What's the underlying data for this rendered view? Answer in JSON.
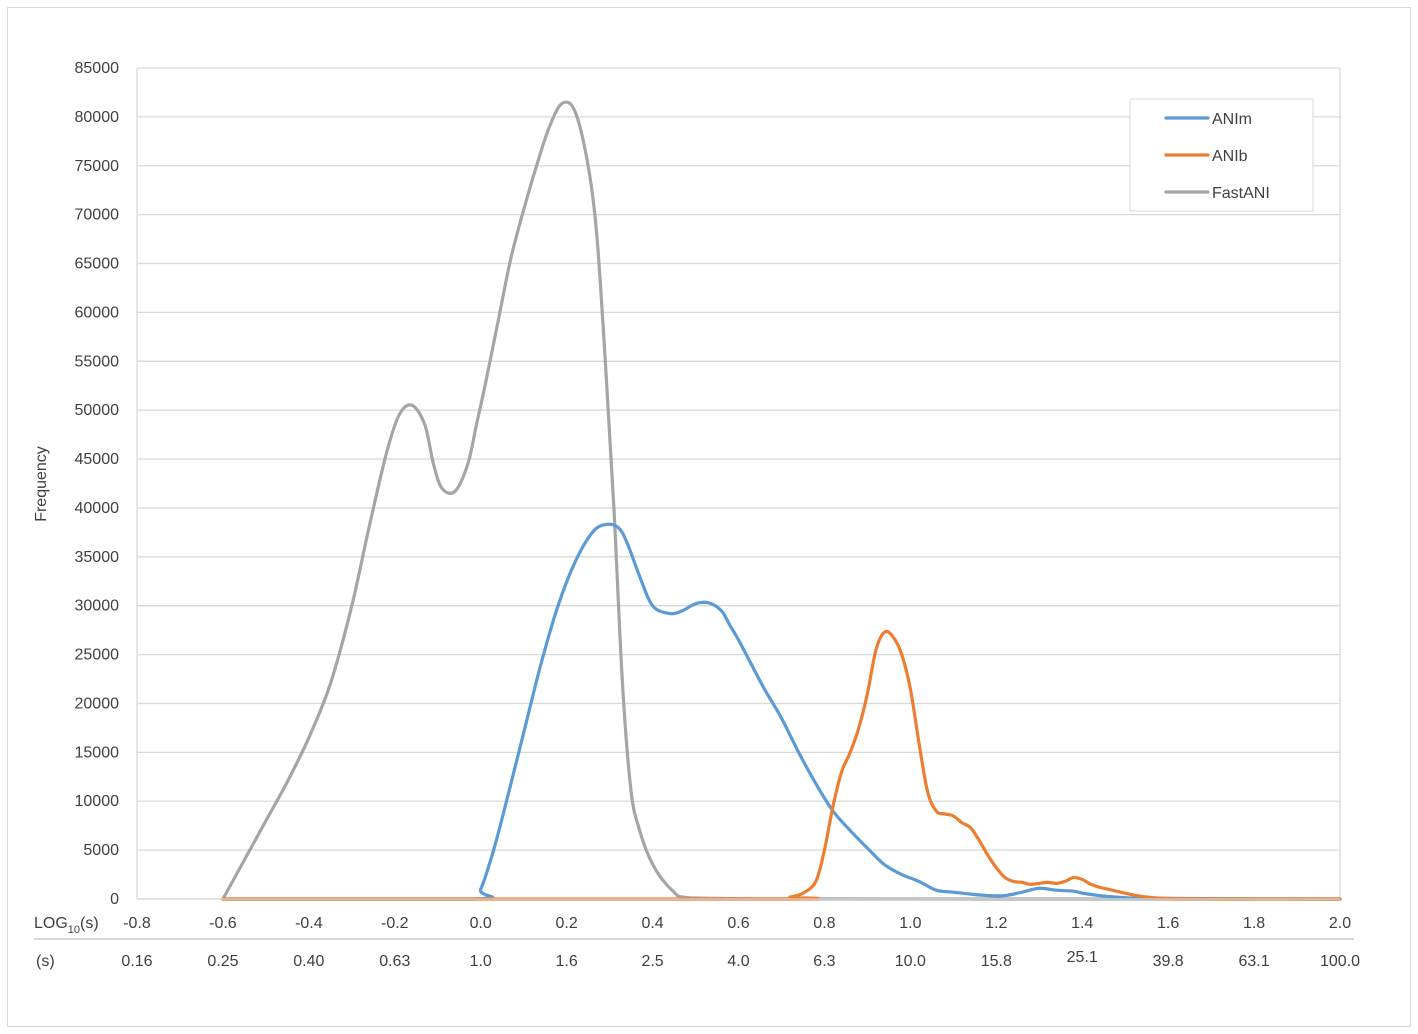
{
  "chart_data": {
    "type": "line",
    "title": "",
    "ylabel": "Frequency",
    "xlabel_primary_prefix": "LOG",
    "xlabel_primary_sub": "10",
    "xlabel_primary_suffix": "(s)",
    "xlabel_secondary": "(s)",
    "xlim": [
      -0.8,
      2.0
    ],
    "ylim": [
      0,
      85000
    ],
    "grid": true,
    "legend_position": "top-right",
    "y_ticks": [
      "0",
      "5000",
      "10000",
      "15000",
      "20000",
      "25000",
      "30000",
      "35000",
      "40000",
      "45000",
      "50000",
      "55000",
      "60000",
      "65000",
      "70000",
      "75000",
      "80000",
      "85000"
    ],
    "x_ticks_primary": [
      "-0.8",
      "-0.6",
      "-0.4",
      "-0.2",
      "0.0",
      "0.2",
      "0.4",
      "0.6",
      "0.8",
      "1.0",
      "1.2",
      "1.4",
      "1.6",
      "1.8",
      "2.0"
    ],
    "x_ticks_secondary": [
      "0.16",
      "0.25",
      "0.40",
      "0.63",
      "1.0",
      "1.6",
      "2.5",
      "4.0",
      "6.3",
      "10.0",
      "15.8",
      "25.1",
      "39.8",
      "63.1",
      "100.0"
    ],
    "series": [
      {
        "name": "ANIm",
        "color": "#5b9bd5",
        "x": [
          -0.6,
          -0.02,
          0.0,
          0.03,
          0.06,
          0.1,
          0.14,
          0.18,
          0.22,
          0.26,
          0.29,
          0.32,
          0.34,
          0.37,
          0.4,
          0.44,
          0.47,
          0.5,
          0.53,
          0.56,
          0.58,
          0.6,
          0.63,
          0.66,
          0.7,
          0.74,
          0.78,
          0.82,
          0.86,
          0.9,
          0.94,
          0.98,
          1.02,
          1.06,
          1.1,
          1.14,
          1.18,
          1.22,
          1.26,
          1.3,
          1.34,
          1.38,
          1.4,
          1.44,
          1.48,
          1.52,
          1.56,
          1.6,
          1.7,
          1.8,
          2.0
        ],
        "y": [
          0,
          0,
          1000,
          5000,
          10000,
          17000,
          24000,
          30000,
          34500,
          37500,
          38300,
          38000,
          36500,
          33000,
          30000,
          29200,
          29500,
          30200,
          30300,
          29500,
          28000,
          26500,
          24000,
          21500,
          18500,
          15000,
          11800,
          9000,
          7000,
          5200,
          3500,
          2500,
          1800,
          900,
          700,
          500,
          350,
          350,
          700,
          1100,
          900,
          800,
          600,
          350,
          200,
          100,
          80,
          60,
          40,
          20,
          0
        ]
      },
      {
        "name": "ANIb",
        "color": "#ed7d31",
        "x": [
          -0.6,
          0.68,
          0.72,
          0.75,
          0.78,
          0.8,
          0.82,
          0.84,
          0.86,
          0.88,
          0.9,
          0.92,
          0.94,
          0.96,
          0.98,
          1.0,
          1.02,
          1.04,
          1.06,
          1.08,
          1.1,
          1.12,
          1.14,
          1.16,
          1.18,
          1.2,
          1.22,
          1.24,
          1.26,
          1.28,
          1.3,
          1.32,
          1.34,
          1.36,
          1.38,
          1.4,
          1.42,
          1.44,
          1.46,
          1.48,
          1.5,
          1.52,
          1.54,
          1.56,
          1.58,
          1.6,
          1.62,
          1.64,
          1.66,
          1.7,
          1.74,
          1.8,
          1.86,
          1.9,
          2.0
        ],
        "y": [
          0,
          0,
          200,
          600,
          1800,
          5000,
          9500,
          13000,
          15000,
          17500,
          21000,
          25500,
          27300,
          26800,
          25000,
          21500,
          16000,
          11000,
          9000,
          8700,
          8500,
          7800,
          7300,
          6000,
          4500,
          3200,
          2200,
          1800,
          1700,
          1500,
          1600,
          1700,
          1600,
          1800,
          2200,
          2000,
          1500,
          1200,
          1000,
          800,
          600,
          400,
          250,
          150,
          80,
          50,
          30,
          20,
          10,
          5,
          0,
          0,
          0,
          0,
          0
        ]
      },
      {
        "name": "FastANI",
        "color": "#a5a5a5",
        "x": [
          -0.6,
          -0.55,
          -0.5,
          -0.45,
          -0.4,
          -0.35,
          -0.3,
          -0.26,
          -0.22,
          -0.19,
          -0.16,
          -0.13,
          -0.11,
          -0.09,
          -0.06,
          -0.03,
          -0.01,
          0.01,
          0.04,
          0.07,
          0.1,
          0.13,
          0.16,
          0.19,
          0.22,
          0.25,
          0.27,
          0.29,
          0.31,
          0.33,
          0.35,
          0.37,
          0.39,
          0.41,
          0.43,
          0.45,
          0.46,
          0.48,
          0.5,
          0.52,
          0.54,
          0.56,
          0.58,
          0.6,
          0.62,
          0.64,
          0.7,
          0.8,
          1.0,
          1.5,
          2.0
        ],
        "y": [
          0,
          4000,
          8000,
          12000,
          16500,
          22000,
          30000,
          38000,
          45500,
          49500,
          50500,
          48500,
          44500,
          42000,
          41700,
          44500,
          48500,
          52500,
          59000,
          65500,
          70500,
          75000,
          79000,
          81400,
          80500,
          75000,
          68000,
          55000,
          40000,
          22000,
          11000,
          7000,
          4500,
          2800,
          1600,
          700,
          300,
          150,
          100,
          80,
          60,
          50,
          40,
          30,
          25,
          20,
          15,
          10,
          5,
          0,
          0
        ]
      }
    ]
  }
}
